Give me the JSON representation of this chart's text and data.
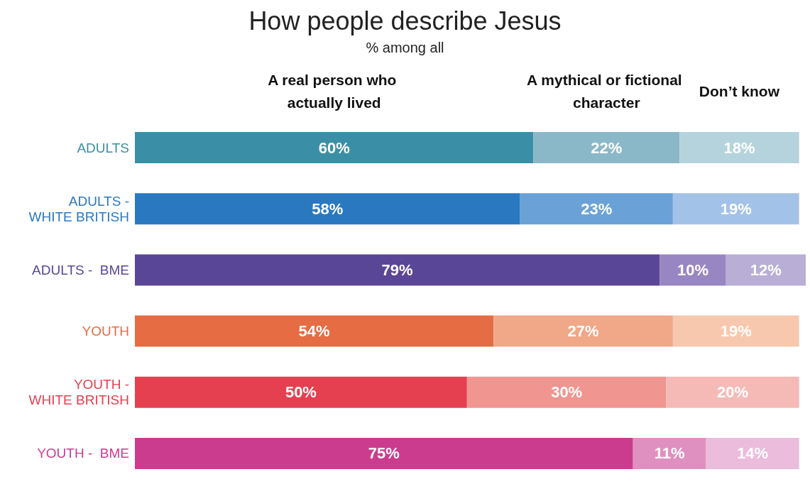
{
  "chart_data": {
    "type": "bar",
    "title": "How people describe Jesus",
    "subtitle": "% among all",
    "orientation": "horizontal",
    "stacked": true,
    "legend": false,
    "grid": false,
    "tick_labels": "y",
    "xlim": [
      0,
      101
    ],
    "categories": [
      "ADULTS",
      "ADULTS - WHITE BRITISH",
      "ADULTS -  BME",
      "YOUTH",
      "YOUTH - WHITE BRITISH",
      "YOUTH -  BME"
    ],
    "series": [
      {
        "name": "A real person who actually lived",
        "values": [
          60,
          58,
          79,
          54,
          50,
          75
        ],
        "colors": [
          "#3a8fa6",
          "#2a78c0",
          "#5a4697",
          "#e66c44",
          "#e44050",
          "#cc3c8e"
        ],
        "value_labels": [
          "60%",
          "58%",
          "79%",
          "54%",
          "50%",
          "75%"
        ]
      },
      {
        "name": "A mythical or fictional character",
        "values": [
          22,
          23,
          10,
          27,
          30,
          11
        ],
        "colors": [
          "#8ab8c8",
          "#6aa2d8",
          "#9886c2",
          "#f0a888",
          "#f09590",
          "#e090c0"
        ],
        "value_labels": [
          "22%",
          "23%",
          "10%",
          "27%",
          "30%",
          "11%"
        ]
      },
      {
        "name": "Don’t know",
        "values": [
          18,
          19,
          12,
          19,
          20,
          14
        ],
        "colors": [
          "#b5d3dc",
          "#a3c2e8",
          "#b8aed6",
          "#f7c8ae",
          "#f5bab6",
          "#ecbcdc"
        ],
        "value_labels": [
          "18%",
          "19%",
          "12%",
          "19%",
          "20%",
          "14%"
        ]
      }
    ]
  }
}
